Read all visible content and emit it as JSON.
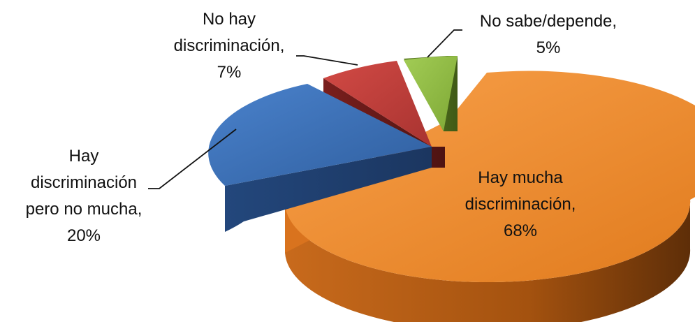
{
  "chart_data": {
    "type": "pie",
    "three_d": true,
    "exploded": true,
    "legend": "none",
    "slices": [
      {
        "label_lines": [
          "Hay mucha",
          "discriminación,",
          "68%"
        ],
        "value": 68,
        "color": "#F08A2A"
      },
      {
        "label_lines": [
          "Hay",
          "discriminación",
          "pero no mucha,",
          "20%"
        ],
        "value": 20,
        "color": "#3A6DB5"
      },
      {
        "label_lines": [
          "No hay",
          "discriminación,",
          "7%"
        ],
        "value": 7,
        "color": "#BF3A36"
      },
      {
        "label_lines": [
          "No sabe/depende,",
          "5%"
        ],
        "value": 5,
        "color": "#8DB83E"
      }
    ]
  }
}
